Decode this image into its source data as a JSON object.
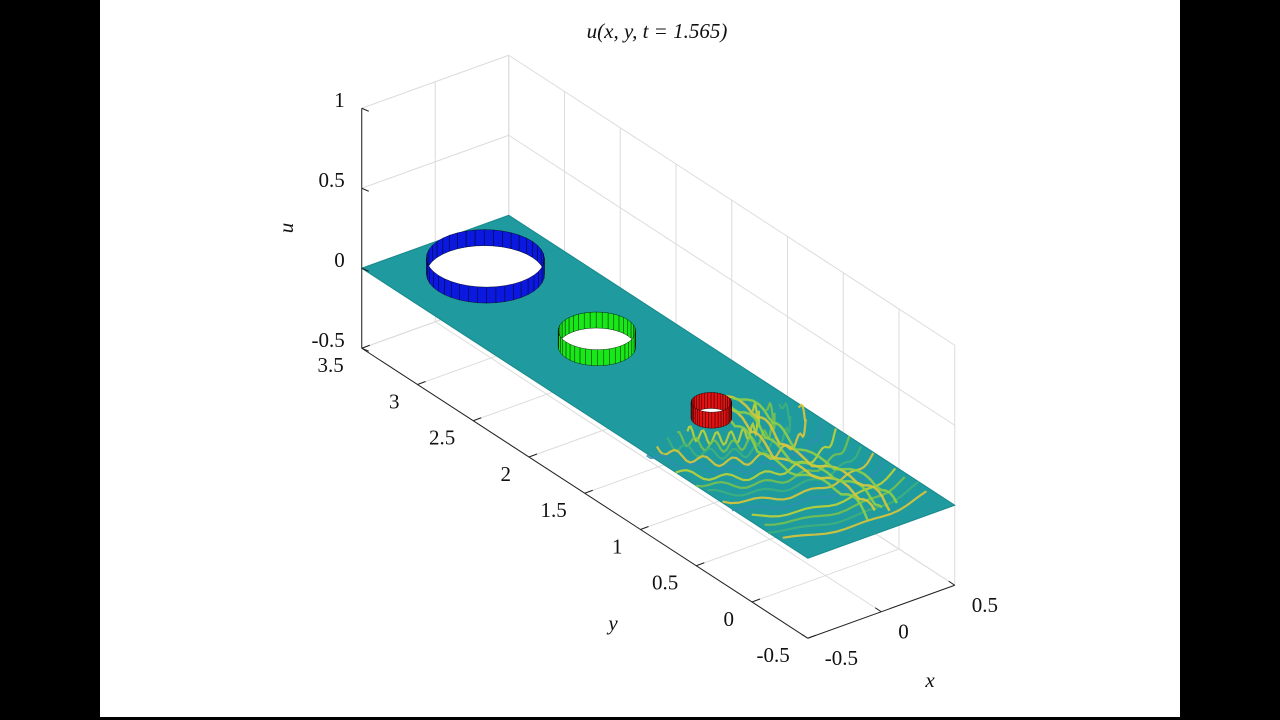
{
  "chart_data": {
    "type": "surface",
    "title": "u(x, y, t = 1.565)",
    "xlabel": "x",
    "ylabel": "y",
    "zlabel": "u",
    "xlim": [
      -0.5,
      0.5
    ],
    "ylim": [
      -0.5,
      3.5
    ],
    "zlim": [
      -0.5,
      1
    ],
    "xticks": [
      -0.5,
      0,
      0.5
    ],
    "yticks": [
      -0.5,
      0,
      0.5,
      1,
      1.5,
      2,
      2.5,
      3,
      3.5
    ],
    "zticks": [
      -0.5,
      0,
      0.5,
      1
    ],
    "grid": true
  }
}
